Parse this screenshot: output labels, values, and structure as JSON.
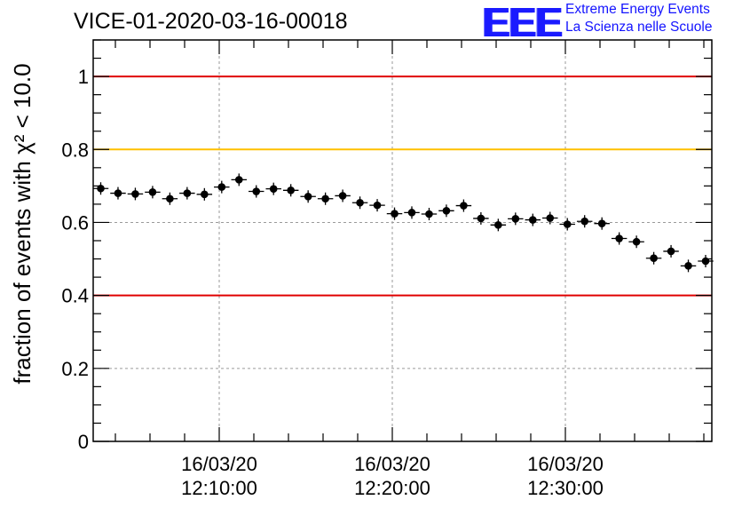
{
  "header": {
    "title": "VICE-01-2020-03-16-00018",
    "logo_mark": "EEE",
    "logo_line1": "Extreme Energy Events",
    "logo_line2": "La Scienza nelle Scuole"
  },
  "chart_data": {
    "type": "scatter",
    "title": "VICE-01-2020-03-16-00018",
    "ylabel": "fraction of events with χ² < 10.0",
    "xlabel": "",
    "ylim": [
      0,
      1.1
    ],
    "y_ticks": [
      0,
      0.2,
      0.4,
      0.6,
      0.8,
      1
    ],
    "y_tick_labels": [
      "0",
      "0.2",
      "0.4",
      "0.6",
      "0.8",
      "1"
    ],
    "x_tick_labels": [
      {
        "date": "16/03/20",
        "time": "12:10:00"
      },
      {
        "date": "16/03/20",
        "time": "12:20:00"
      },
      {
        "date": "16/03/20",
        "time": "12:30:00"
      }
    ],
    "grid": true,
    "reference_lines": [
      {
        "y": 1.0,
        "color": "#e00000"
      },
      {
        "y": 0.8,
        "color": "#ffc000"
      },
      {
        "y": 0.4,
        "color": "#e00000"
      }
    ],
    "series": [
      {
        "values": [
          0.693,
          0.68,
          0.678,
          0.683,
          0.665,
          0.68,
          0.677,
          0.697,
          0.717,
          0.685,
          0.692,
          0.688,
          0.671,
          0.665,
          0.673,
          0.654,
          0.647,
          0.624,
          0.627,
          0.623,
          0.632,
          0.646,
          0.611,
          0.593,
          0.61,
          0.607,
          0.612,
          0.595,
          0.603,
          0.597,
          0.556,
          0.547,
          0.502,
          0.521,
          0.481,
          0.494
        ],
        "color": "#000000"
      }
    ]
  }
}
